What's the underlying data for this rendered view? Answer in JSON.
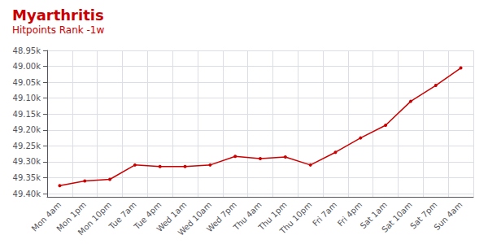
{
  "chart_data": {
    "type": "line",
    "title": "Myarthritis",
    "subtitle": "Hitpoints Rank -1w",
    "categories": [
      "Mon 4am",
      "Mon 1pm",
      "Mon 10pm",
      "Tue 7am",
      "Tue 4pm",
      "Wed 1am",
      "Wed 10am",
      "Wed 7pm",
      "Thu 4am",
      "Thu 1pm",
      "Thu 10pm",
      "Fri 7am",
      "Fri 4pm",
      "Sat 1am",
      "Sat 10am",
      "Sat 7pm",
      "Sun 4am"
    ],
    "values": [
      49375,
      49360,
      49355,
      49310,
      49315,
      49315,
      49310,
      49283,
      49290,
      49285,
      49310,
      49270,
      49225,
      49185,
      49110,
      49060,
      49005
    ],
    "color": "#cc0000",
    "marker": "circle",
    "ylim": [
      49410,
      48950
    ],
    "yticks": [
      {
        "value": 48950,
        "label": "48.95k"
      },
      {
        "value": 49000,
        "label": "49.00k"
      },
      {
        "value": 49050,
        "label": "49.05k"
      },
      {
        "value": 49100,
        "label": "49.10k"
      },
      {
        "value": 49150,
        "label": "49.15k"
      },
      {
        "value": 49200,
        "label": "49.20k"
      },
      {
        "value": 49250,
        "label": "49.25k"
      },
      {
        "value": 49300,
        "label": "49.30k"
      },
      {
        "value": 49350,
        "label": "49.35k"
      },
      {
        "value": 49400,
        "label": "49.40k"
      }
    ],
    "grid": true
  }
}
